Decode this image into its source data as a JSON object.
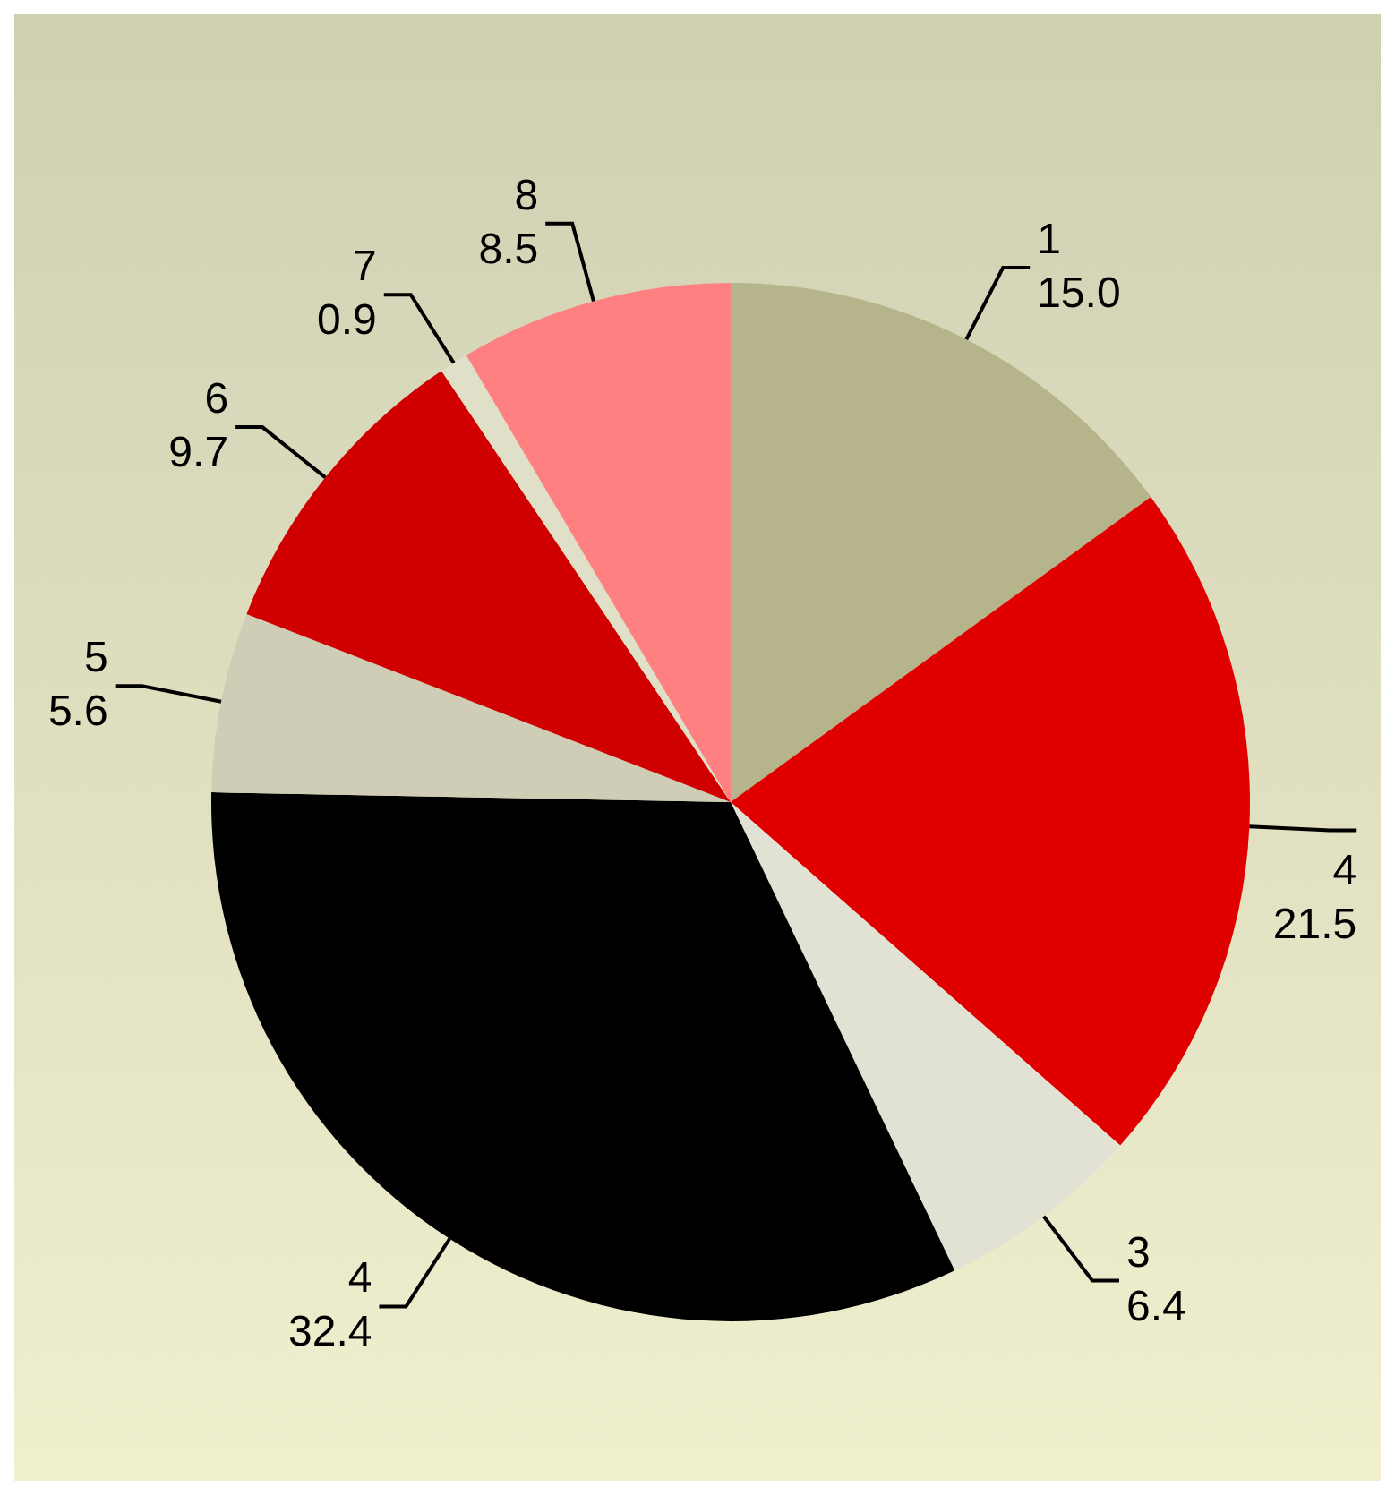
{
  "chart_data": {
    "type": "pie",
    "categories": [
      "1",
      "4",
      "3",
      "4",
      "5",
      "6",
      "7",
      "8"
    ],
    "values": [
      15.0,
      21.5,
      6.4,
      32.4,
      5.6,
      9.7,
      0.9,
      8.5
    ],
    "colors": [
      "#b5b48a",
      "#e00000",
      "#e2e2d4",
      "#000000",
      "#cfcdb6",
      "#d00000",
      "#e0e0c8",
      "#ff8080"
    ],
    "value_labels": [
      "15.0",
      "21.5",
      "6.4",
      "32.4",
      "5.6",
      "9.7",
      "0.9",
      "8.5"
    ]
  }
}
